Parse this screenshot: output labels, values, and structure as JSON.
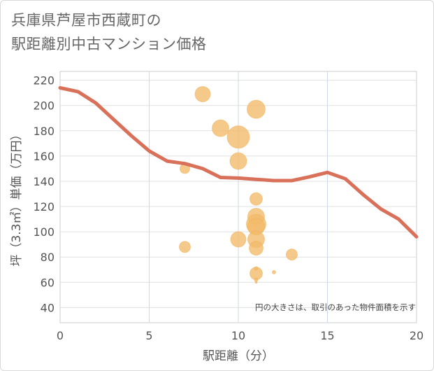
{
  "chart_data": {
    "type": "scatter",
    "title_lines": [
      "兵庫県芦屋市西蔵町の",
      "駅距離別中古マンション価格"
    ],
    "xlabel": "駅距離（分）",
    "ylabel": "坪（3.3㎡）単価（万円）",
    "xlim": [
      0,
      20
    ],
    "ylim": [
      28,
      227
    ],
    "xticks": [
      0,
      5,
      10,
      15,
      20
    ],
    "yticks": [
      40,
      60,
      80,
      100,
      120,
      140,
      160,
      180,
      200,
      220
    ],
    "note": "円の大きさは、取引のあった物件面積を示す",
    "bubble_color": "#F3BC6B",
    "line_color": "#D9705A",
    "points": [
      {
        "x": 8,
        "y": 209,
        "size": 11
      },
      {
        "x": 11,
        "y": 197,
        "size": 13
      },
      {
        "x": 9,
        "y": 182,
        "size": 12
      },
      {
        "x": 10,
        "y": 175,
        "size": 16
      },
      {
        "x": 10,
        "y": 156,
        "size": 12
      },
      {
        "x": 7,
        "y": 150,
        "size": 7
      },
      {
        "x": 11,
        "y": 126,
        "size": 9
      },
      {
        "x": 11,
        "y": 112,
        "size": 12
      },
      {
        "x": 11,
        "y": 106,
        "size": 14
      },
      {
        "x": 11,
        "y": 104,
        "size": 12
      },
      {
        "x": 10,
        "y": 94,
        "size": 11
      },
      {
        "x": 11,
        "y": 94,
        "size": 12
      },
      {
        "x": 11,
        "y": 87,
        "size": 10
      },
      {
        "x": 7,
        "y": 88,
        "size": 8
      },
      {
        "x": 13,
        "y": 82,
        "size": 8
      },
      {
        "x": 11,
        "y": 67,
        "size": 9
      },
      {
        "x": 11,
        "y": 71,
        "size": 2.5
      },
      {
        "x": 12,
        "y": 68,
        "size": 2.5
      },
      {
        "x": 11,
        "y": 62,
        "size": 2.5
      },
      {
        "x": 11,
        "y": 60,
        "size": 1.5
      }
    ],
    "trend": {
      "name": "average",
      "x": [
        0,
        1,
        2,
        3,
        4,
        5,
        6,
        7,
        8,
        9,
        10,
        11,
        12,
        13,
        14,
        15,
        16,
        17,
        18,
        19,
        20
      ],
      "y": [
        214,
        211,
        202,
        189,
        176,
        164,
        156,
        154,
        150,
        143,
        142.5,
        141.5,
        140.5,
        140.5,
        143.5,
        147,
        142,
        129.5,
        118,
        110,
        96
      ]
    }
  }
}
